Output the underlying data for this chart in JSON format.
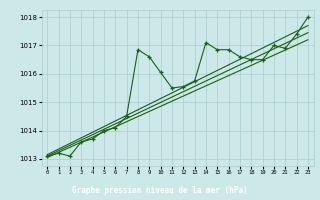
{
  "main_line": [
    [
      0,
      1013.1
    ],
    [
      1,
      1013.2
    ],
    [
      2,
      1013.1
    ],
    [
      3,
      1013.6
    ],
    [
      4,
      1013.7
    ],
    [
      5,
      1014.0
    ],
    [
      6,
      1014.1
    ],
    [
      7,
      1014.5
    ],
    [
      8,
      1016.85
    ],
    [
      9,
      1016.6
    ],
    [
      10,
      1016.05
    ],
    [
      11,
      1015.5
    ],
    [
      12,
      1015.55
    ],
    [
      13,
      1015.75
    ],
    [
      14,
      1017.1
    ],
    [
      15,
      1016.85
    ],
    [
      16,
      1016.85
    ],
    [
      17,
      1016.6
    ],
    [
      18,
      1016.5
    ],
    [
      19,
      1016.5
    ],
    [
      20,
      1017.0
    ],
    [
      21,
      1016.9
    ],
    [
      22,
      1017.4
    ],
    [
      23,
      1018.0
    ]
  ],
  "trend_line1": [
    [
      0,
      1013.05
    ],
    [
      23,
      1017.2
    ]
  ],
  "trend_line2": [
    [
      0,
      1013.1
    ],
    [
      23,
      1017.45
    ]
  ],
  "trend_line3": [
    [
      0,
      1013.15
    ],
    [
      23,
      1017.7
    ]
  ],
  "line_color": "#1a5e1a",
  "bg_color": "#cce8e8",
  "grid_color": "#aacece",
  "bar_color": "#2d6e2d",
  "xlabel": "Graphe pression niveau de la mer (hPa)",
  "xlabel_text_color": "#ffffff",
  "ylim": [
    1012.75,
    1018.25
  ],
  "xlim": [
    -0.5,
    23.5
  ],
  "yticks": [
    1013,
    1014,
    1015,
    1016,
    1017,
    1018
  ],
  "xticks": [
    0,
    1,
    2,
    3,
    4,
    5,
    6,
    7,
    8,
    9,
    10,
    11,
    12,
    13,
    14,
    15,
    16,
    17,
    18,
    19,
    20,
    21,
    22,
    23
  ]
}
